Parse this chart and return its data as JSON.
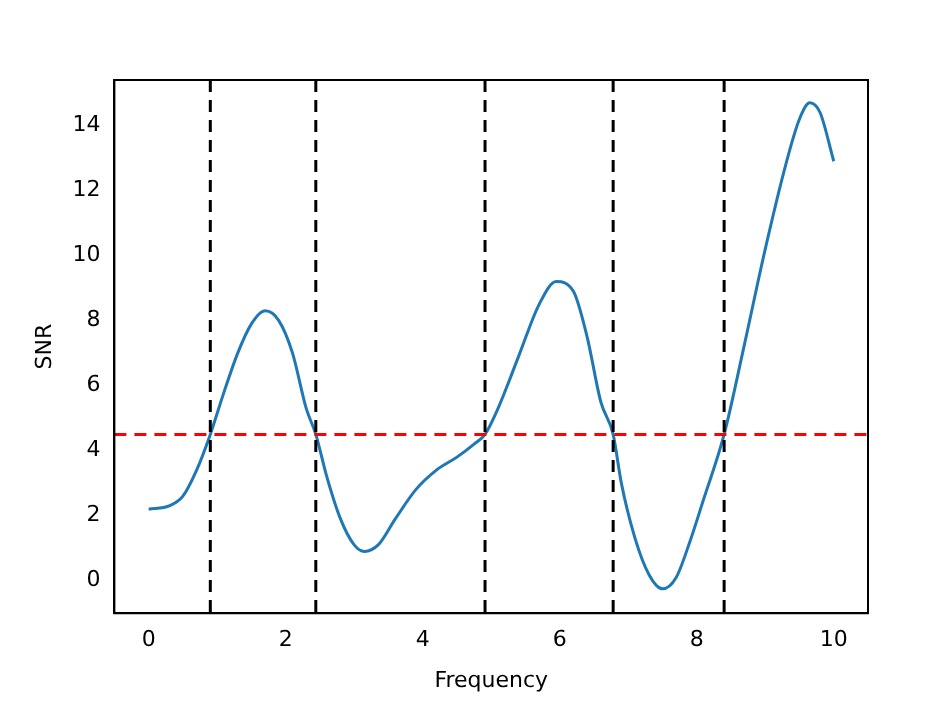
{
  "chart_data": {
    "type": "line",
    "xlabel": "Frequency",
    "ylabel": "SNR",
    "x": [
      0,
      0.3,
      0.5,
      0.7,
      0.9,
      1.1,
      1.3,
      1.5,
      1.7,
      1.9,
      2.1,
      2.3,
      2.44,
      2.6,
      2.8,
      3.0,
      3.15,
      3.35,
      3.6,
      3.9,
      4.2,
      4.5,
      4.75,
      4.91,
      5.1,
      5.4,
      5.7,
      5.95,
      6.2,
      6.4,
      6.6,
      6.78,
      6.9,
      7.1,
      7.3,
      7.5,
      7.7,
      7.9,
      8.1,
      8.4,
      8.7,
      9.0,
      9.3,
      9.5,
      9.65,
      9.8,
      10
    ],
    "series": [
      {
        "color": "#1f77b4",
        "values": [
          2.2,
          2.3,
          2.6,
          3.4,
          4.5,
          5.8,
          7.0,
          7.9,
          8.3,
          8.0,
          7.0,
          5.3,
          4.5,
          3.2,
          1.9,
          1.1,
          0.9,
          1.1,
          1.9,
          2.8,
          3.4,
          3.8,
          4.2,
          4.5,
          5.3,
          6.9,
          8.5,
          9.2,
          8.9,
          7.5,
          5.5,
          4.5,
          3.0,
          1.3,
          0.2,
          -0.25,
          0.1,
          1.2,
          2.5,
          4.5,
          7.3,
          10.2,
          12.8,
          14.2,
          14.7,
          14.4,
          12.9
        ]
      }
    ],
    "xlim": [
      -0.5,
      10.5
    ],
    "ylim": [
      -1,
      15.4
    ],
    "xticks": [
      0,
      2,
      4,
      6,
      8,
      10
    ],
    "yticks": [
      0,
      2,
      4,
      6,
      8,
      10,
      12,
      14
    ],
    "marker": "none",
    "line_style": "solid",
    "grid": false,
    "legend": false,
    "ref_lines": [
      {
        "axis": "y",
        "value": 4.5,
        "color": "#ff0000",
        "line_style": "dashed"
      },
      {
        "axis": "x",
        "value": 0.9,
        "color": "#000000",
        "line_style": "dashed"
      },
      {
        "axis": "x",
        "value": 2.44,
        "color": "#000000",
        "line_style": "dashed"
      },
      {
        "axis": "x",
        "value": 4.91,
        "color": "#000000",
        "line_style": "dashed"
      },
      {
        "axis": "x",
        "value": 6.78,
        "color": "#000000",
        "line_style": "dashed"
      },
      {
        "axis": "x",
        "value": 8.4,
        "color": "#000000",
        "line_style": "dashed"
      }
    ]
  }
}
